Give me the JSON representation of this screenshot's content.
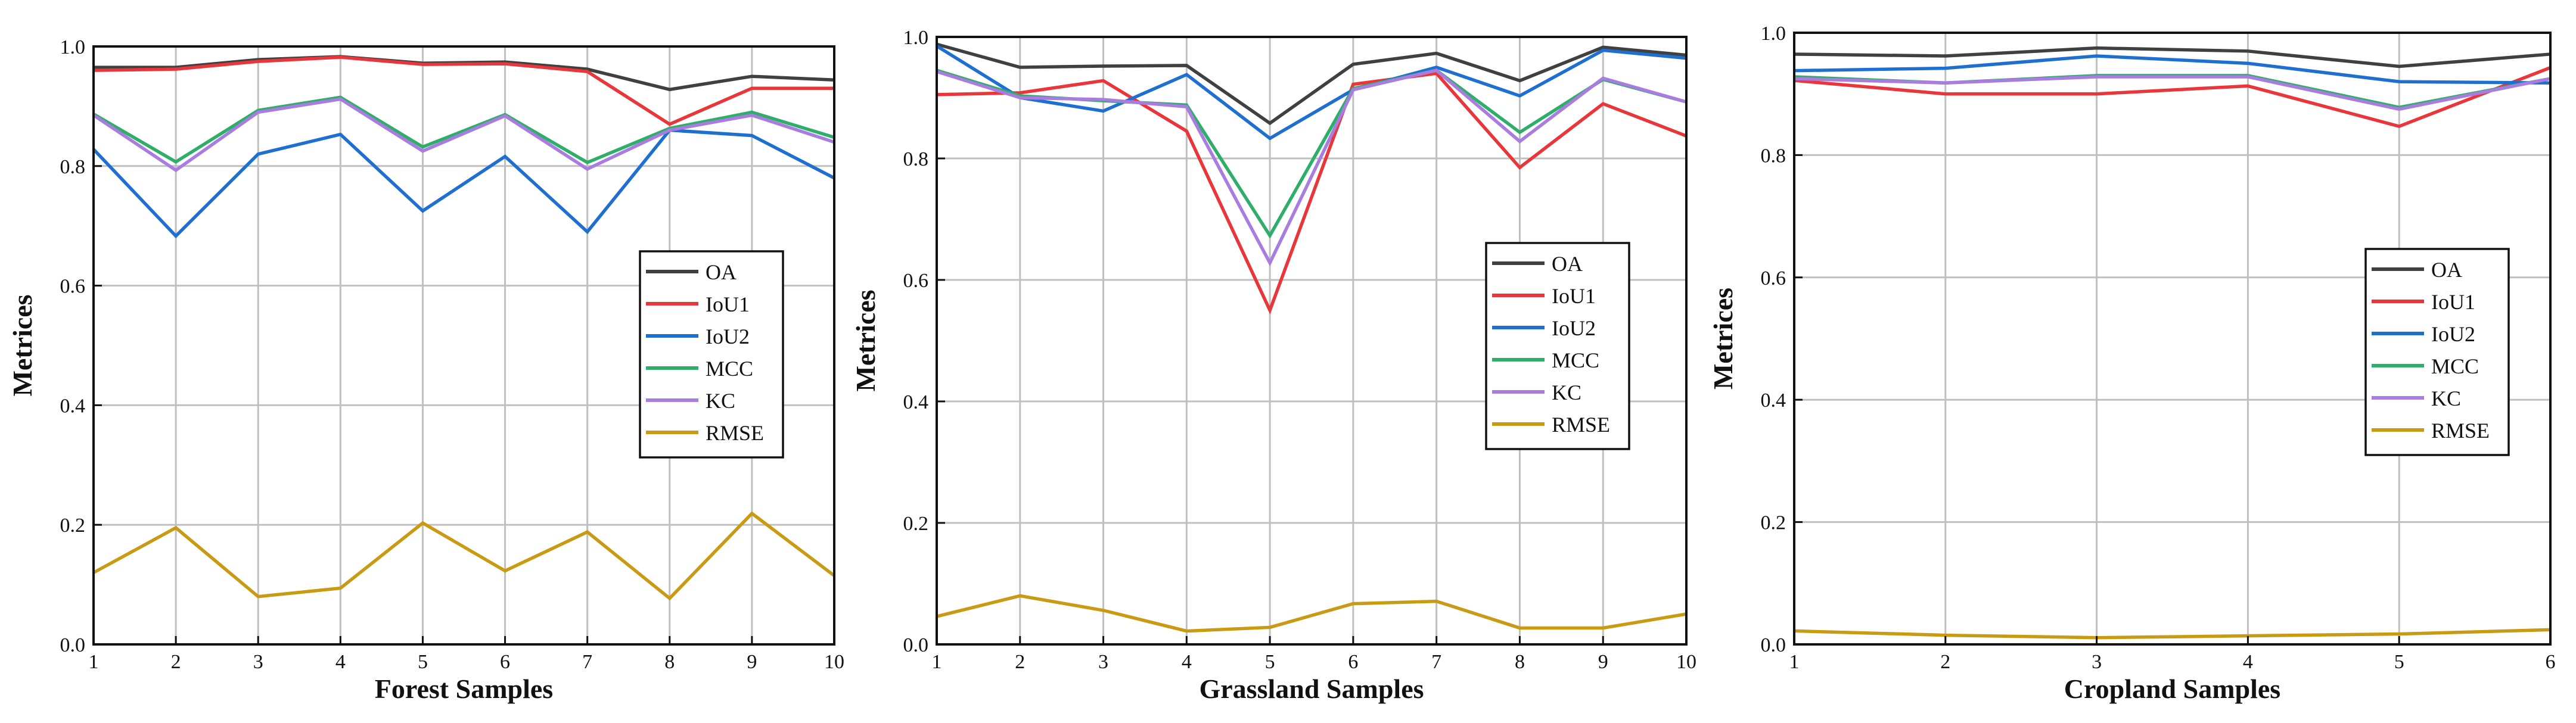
{
  "chart_data": [
    {
      "type": "line",
      "xlabel": "Forest Samples",
      "ylabel": "Metrices",
      "x": [
        1,
        2,
        3,
        4,
        5,
        6,
        7,
        8,
        9,
        10
      ],
      "xlim": [
        1,
        10
      ],
      "ylim": [
        0.0,
        1.0
      ],
      "yticks": [
        "0.0",
        "0.2",
        "0.4",
        "0.6",
        "0.8",
        "1.0"
      ],
      "grid": true,
      "legend_position": "center-right",
      "series": [
        {
          "name": "OA",
          "color": "#404040",
          "values": [
            0.965,
            0.965,
            0.978,
            0.983,
            0.972,
            0.974,
            0.962,
            0.928,
            0.95,
            0.944
          ]
        },
        {
          "name": "IoU1",
          "color": "#e8363a",
          "values": [
            0.96,
            0.962,
            0.975,
            0.982,
            0.97,
            0.971,
            0.958,
            0.87,
            0.93,
            0.93
          ]
        },
        {
          "name": "IoU2",
          "color": "#1f6fd1",
          "values": [
            0.828,
            0.683,
            0.82,
            0.853,
            0.725,
            0.816,
            0.69,
            0.86,
            0.851,
            0.78
          ]
        },
        {
          "name": "MCC",
          "color": "#2fae6a",
          "values": [
            0.887,
            0.807,
            0.893,
            0.915,
            0.832,
            0.886,
            0.806,
            0.863,
            0.89,
            0.848
          ]
        },
        {
          "name": "KC",
          "color": "#a97de0",
          "values": [
            0.885,
            0.793,
            0.89,
            0.912,
            0.825,
            0.884,
            0.795,
            0.86,
            0.885,
            0.84
          ]
        },
        {
          "name": "RMSE",
          "color": "#c99a14",
          "values": [
            0.12,
            0.195,
            0.08,
            0.094,
            0.203,
            0.123,
            0.188,
            0.077,
            0.219,
            0.115
          ]
        }
      ]
    },
    {
      "type": "line",
      "xlabel": "Grassland Samples",
      "ylabel": "Metrices",
      "x": [
        1,
        2,
        3,
        4,
        5,
        6,
        7,
        8,
        9,
        10
      ],
      "xlim": [
        1,
        10
      ],
      "ylim": [
        0.0,
        1.0
      ],
      "yticks": [
        "0.0",
        "0.2",
        "0.4",
        "0.6",
        "0.8",
        "1.0"
      ],
      "grid": true,
      "legend_position": "center-right",
      "series": [
        {
          "name": "OA",
          "color": "#404040",
          "values": [
            0.988,
            0.95,
            0.952,
            0.953,
            0.858,
            0.955,
            0.973,
            0.928,
            0.983,
            0.97
          ]
        },
        {
          "name": "IoU1",
          "color": "#e8363a",
          "values": [
            0.905,
            0.908,
            0.928,
            0.845,
            0.55,
            0.922,
            0.94,
            0.785,
            0.89,
            0.837
          ]
        },
        {
          "name": "IoU2",
          "color": "#1f6fd1",
          "values": [
            0.985,
            0.9,
            0.878,
            0.938,
            0.833,
            0.913,
            0.95,
            0.903,
            0.978,
            0.965
          ]
        },
        {
          "name": "MCC",
          "color": "#2fae6a",
          "values": [
            0.945,
            0.903,
            0.895,
            0.888,
            0.673,
            0.915,
            0.945,
            0.843,
            0.93,
            0.893
          ]
        },
        {
          "name": "KC",
          "color": "#a97de0",
          "values": [
            0.943,
            0.9,
            0.897,
            0.885,
            0.628,
            0.913,
            0.945,
            0.828,
            0.932,
            0.893
          ]
        },
        {
          "name": "RMSE",
          "color": "#c99a14",
          "values": [
            0.046,
            0.08,
            0.056,
            0.022,
            0.028,
            0.067,
            0.071,
            0.027,
            0.027,
            0.05
          ]
        }
      ]
    },
    {
      "type": "line",
      "xlabel": "Cropland Samples",
      "ylabel": "Metrices",
      "x": [
        1,
        2,
        3,
        4,
        5,
        6
      ],
      "xlim": [
        1,
        6
      ],
      "ylim": [
        0.0,
        1.0
      ],
      "yticks": [
        "0.0",
        "0.2",
        "0.4",
        "0.6",
        "0.8",
        "1.0"
      ],
      "grid": true,
      "legend_position": "center-right",
      "series": [
        {
          "name": "OA",
          "color": "#404040",
          "values": [
            0.965,
            0.962,
            0.975,
            0.97,
            0.945,
            0.965
          ]
        },
        {
          "name": "IoU1",
          "color": "#e8363a",
          "values": [
            0.922,
            0.9,
            0.9,
            0.913,
            0.847,
            0.943
          ]
        },
        {
          "name": "IoU2",
          "color": "#1f6fd1",
          "values": [
            0.938,
            0.942,
            0.962,
            0.95,
            0.92,
            0.918
          ]
        },
        {
          "name": "MCC",
          "color": "#2fae6a",
          "values": [
            0.928,
            0.918,
            0.93,
            0.93,
            0.878,
            0.925
          ]
        },
        {
          "name": "KC",
          "color": "#a97de0",
          "values": [
            0.925,
            0.918,
            0.928,
            0.928,
            0.875,
            0.925
          ]
        },
        {
          "name": "RMSE",
          "color": "#c99a14",
          "values": [
            0.022,
            0.015,
            0.011,
            0.014,
            0.017,
            0.024
          ]
        }
      ]
    }
  ]
}
